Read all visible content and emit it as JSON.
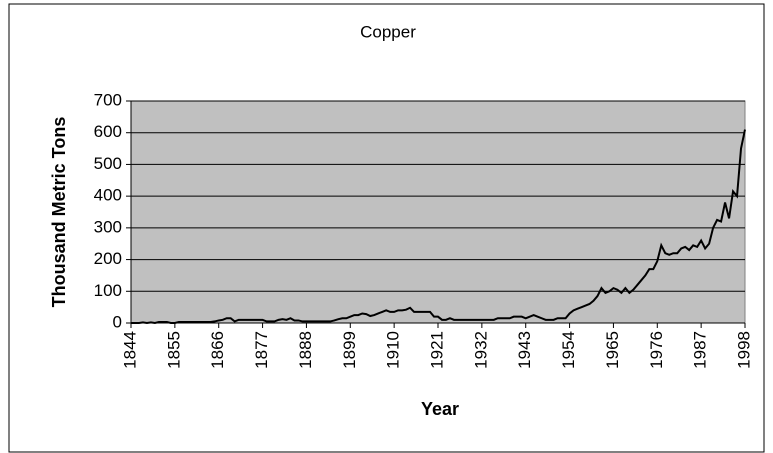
{
  "chart_data": {
    "type": "line",
    "title": "Copper",
    "x_label": "Year",
    "y_label": "Thousand Metric Tons",
    "x": [
      1844,
      1845,
      1846,
      1847,
      1848,
      1849,
      1850,
      1851,
      1852,
      1853,
      1854,
      1855,
      1856,
      1857,
      1858,
      1859,
      1860,
      1861,
      1862,
      1863,
      1864,
      1865,
      1866,
      1867,
      1868,
      1869,
      1870,
      1871,
      1872,
      1873,
      1874,
      1875,
      1876,
      1877,
      1878,
      1879,
      1880,
      1881,
      1882,
      1883,
      1884,
      1885,
      1886,
      1887,
      1888,
      1889,
      1890,
      1891,
      1892,
      1893,
      1894,
      1895,
      1896,
      1897,
      1898,
      1899,
      1900,
      1901,
      1902,
      1903,
      1904,
      1905,
      1906,
      1907,
      1908,
      1909,
      1910,
      1911,
      1912,
      1913,
      1914,
      1915,
      1916,
      1917,
      1918,
      1919,
      1920,
      1921,
      1922,
      1923,
      1924,
      1925,
      1926,
      1927,
      1928,
      1929,
      1930,
      1931,
      1932,
      1933,
      1934,
      1935,
      1936,
      1937,
      1938,
      1939,
      1940,
      1941,
      1942,
      1943,
      1944,
      1945,
      1946,
      1947,
      1948,
      1949,
      1950,
      1951,
      1952,
      1953,
      1954,
      1955,
      1956,
      1957,
      1958,
      1959,
      1960,
      1961,
      1962,
      1963,
      1964,
      1965,
      1966,
      1967,
      1968,
      1969,
      1970,
      1971,
      1972,
      1973,
      1974,
      1975,
      1976,
      1977,
      1978,
      1979,
      1980,
      1981,
      1982,
      1983,
      1984,
      1985,
      1986,
      1987,
      1988,
      1989,
      1990,
      1991,
      1992,
      1993,
      1994,
      1995,
      1996,
      1997,
      1998
    ],
    "series": [
      {
        "name": "Copper",
        "color": "#000000",
        "values": [
          0,
          0,
          0,
          2,
          0,
          2,
          0,
          3,
          3,
          3,
          0,
          0,
          3,
          3,
          3,
          3,
          3,
          3,
          3,
          3,
          3,
          5,
          8,
          10,
          15,
          15,
          5,
          10,
          10,
          10,
          10,
          10,
          10,
          10,
          5,
          5,
          5,
          10,
          12,
          10,
          15,
          8,
          8,
          5,
          5,
          5,
          5,
          5,
          5,
          5,
          5,
          8,
          12,
          15,
          15,
          20,
          25,
          25,
          30,
          28,
          22,
          25,
          30,
          35,
          40,
          35,
          35,
          40,
          40,
          42,
          48,
          35,
          35,
          35,
          35,
          35,
          20,
          20,
          10,
          10,
          15,
          10,
          10,
          10,
          10,
          10,
          10,
          10,
          10,
          10,
          10,
          10,
          15,
          15,
          15,
          15,
          20,
          20,
          20,
          15,
          20,
          25,
          20,
          15,
          10,
          10,
          10,
          15,
          15,
          15,
          30,
          40,
          45,
          50,
          55,
          60,
          70,
          85,
          110,
          95,
          100,
          110,
          105,
          95,
          110,
          95,
          105,
          120,
          135,
          150,
          170,
          170,
          195,
          245,
          220,
          215,
          220,
          220,
          235,
          240,
          230,
          245,
          240,
          260,
          235,
          250,
          300,
          325,
          320,
          380,
          330,
          415,
          400,
          550,
          610
        ]
      }
    ],
    "xlim": [
      1844,
      1998
    ],
    "xticks": [
      1844,
      1855,
      1866,
      1877,
      1888,
      1899,
      1910,
      1921,
      1932,
      1943,
      1954,
      1965,
      1976,
      1987,
      1998
    ],
    "ylim": [
      0,
      700
    ],
    "yticks": [
      0,
      100,
      200,
      300,
      400,
      500,
      600,
      700
    ],
    "grid": true
  }
}
